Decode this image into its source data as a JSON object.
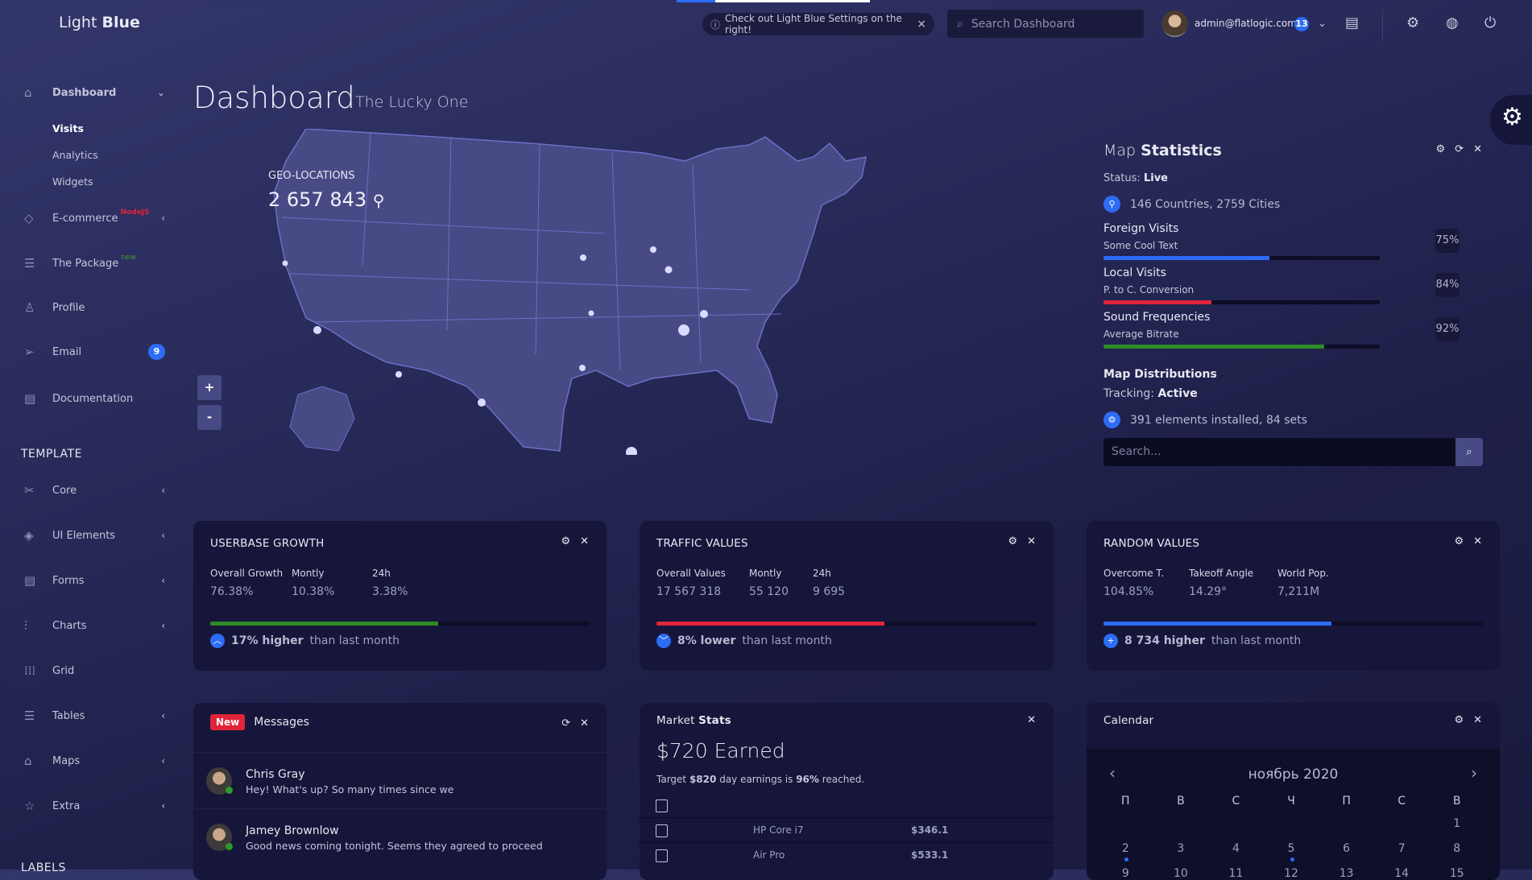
{
  "header": {
    "logo_light": "Light",
    "logo_bold": "Blue",
    "notice": "Check out Light Blue Settings on the right!",
    "search_placeholder": "Search Dashboard",
    "user_email": "admin@flatlogic.com",
    "notification_count": "13"
  },
  "sidebar": {
    "items": [
      {
        "label": "Dashboard",
        "icon": "home-icon",
        "expanded": true,
        "sub": [
          "Visits",
          "Analytics",
          "Widgets"
        ]
      },
      {
        "label": "E-commerce",
        "icon": "diamond-icon",
        "tag": "NodeJS"
      },
      {
        "label": "The Package",
        "icon": "database-icon",
        "tag": "new"
      },
      {
        "label": "Profile",
        "icon": "user-icon"
      },
      {
        "label": "Email",
        "icon": "paper-plane-icon",
        "badge": "9"
      },
      {
        "label": "Documentation",
        "icon": "document-icon"
      }
    ],
    "template_heading": "TEMPLATE",
    "template_items": [
      "Core",
      "UI Elements",
      "Forms",
      "Charts",
      "Grid",
      "Tables",
      "Maps",
      "Extra"
    ],
    "labels_heading": "LABELS"
  },
  "page": {
    "title": "Dashboard",
    "subtitle": "The Lucky One"
  },
  "map": {
    "geo_label": "GEO-LOCATIONS",
    "geo_count": "2 657 843",
    "zoom_in": "+",
    "zoom_out": "-"
  },
  "map_stats": {
    "title_light": "Map",
    "title_bold": "Statistics",
    "status_label": "Status:",
    "status_value": "Live",
    "countries": "146 Countries, 2759 Cities",
    "progress": [
      {
        "title": "Foreign Visits",
        "subtitle": "Some Cool Text",
        "pct": "75%",
        "fill": 60,
        "color": "#2c6cf6"
      },
      {
        "title": "Local Visits",
        "subtitle": "P. to C. Conversion",
        "pct": "84%",
        "fill": 39,
        "color": "#e0243a"
      },
      {
        "title": "Sound Frequencies",
        "subtitle": "Average Bitrate",
        "pct": "92%",
        "fill": 80,
        "color": "#2e8b25"
      }
    ],
    "dist_title": "Map Distributions",
    "tracking_label": "Tracking:",
    "tracking_value": "Active",
    "elements": "391 elements installed, 84 sets",
    "search_placeholder": "Search..."
  },
  "widgets": [
    {
      "title": "USERBASE GROWTH",
      "stats": [
        {
          "label": "Overall Growth",
          "value": "76.38%"
        },
        {
          "label": "Montly",
          "value": "10.38%"
        },
        {
          "label": "24h",
          "value": "3.38%"
        }
      ],
      "fill": 60,
      "color": "#2e8b25",
      "trend_bold": "17% higher",
      "trend_text": "than last month",
      "trend_icon": "chevron-up-icon"
    },
    {
      "title": "TRAFFIC VALUES",
      "stats": [
        {
          "label": "Overall Values",
          "value": "17 567 318"
        },
        {
          "label": "Montly",
          "value": "55 120"
        },
        {
          "label": "24h",
          "value": "9 695"
        }
      ],
      "fill": 60,
      "color": "#e0243a",
      "trend_bold": "8% lower",
      "trend_text": "than last month",
      "trend_icon": "chevron-down-icon"
    },
    {
      "title": "RANDOM VALUES",
      "stats": [
        {
          "label": "Overcome T.",
          "value": "104.85%"
        },
        {
          "label": "Takeoff Angle",
          "value": "14.29°"
        },
        {
          "label": "World Pop.",
          "value": "7,211M"
        }
      ],
      "fill": 60,
      "color": "#2c6cf6",
      "trend_bold": "8 734 higher",
      "trend_text": "than last month",
      "trend_icon": "plus-icon"
    }
  ],
  "messages": {
    "badge": "New",
    "title": "Messages",
    "items": [
      {
        "name": "Chris Gray",
        "text": "Hey! What's up? So many times since we"
      },
      {
        "name": "Jamey Brownlow",
        "text": "Good news coming tonight. Seems they agreed to proceed"
      }
    ]
  },
  "market": {
    "title_light": "Market",
    "title_bold": "Stats",
    "earned": "$720 Earned",
    "target_pre": "Target",
    "target_amt": "$820",
    "target_mid": "day earnings is",
    "target_pct": "96%",
    "target_post": "reached.",
    "rows": [
      {
        "name": "HP Core i7",
        "price": "$346.1"
      },
      {
        "name": "Air Pro",
        "price": "$533.1"
      }
    ]
  },
  "calendar": {
    "title": "Calendar",
    "month": "ноябрь 2020",
    "weekdays": [
      "П",
      "В",
      "С",
      "Ч",
      "П",
      "С",
      "В"
    ],
    "weeks": [
      [
        "",
        "",
        "",
        "",
        "",
        "",
        "1"
      ],
      [
        "2",
        "3",
        "4",
        "5",
        "6",
        "7",
        "8"
      ],
      [
        "9",
        "10",
        "11",
        "12",
        "13",
        "14",
        "15"
      ]
    ],
    "event_days": [
      "2",
      "5"
    ]
  }
}
